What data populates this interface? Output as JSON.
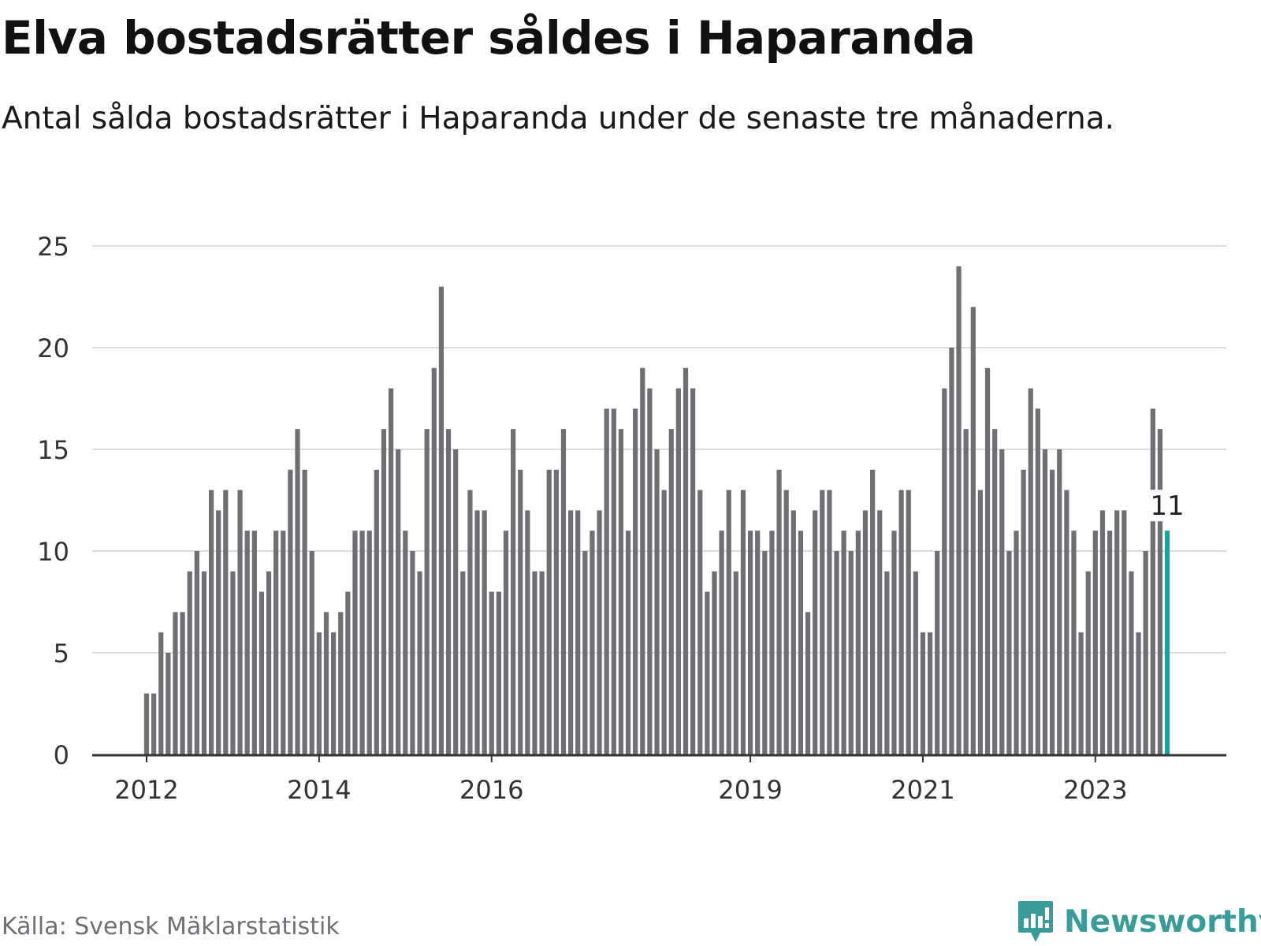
{
  "title": "Elva bostadsrätter såldes i Haparanda",
  "subtitle": "Antal sålda bostadsrätter i Haparanda under de senaste tre månaderna.",
  "source": "Källa: Svensk Mäklarstatistik",
  "brand": {
    "name": "Newsworthy",
    "icon": "newsworthy-logo-icon",
    "color": "#3a9c98"
  },
  "colors": {
    "bar": "#6e6e73",
    "highlight": "#16a39b",
    "grid": "#dddddd",
    "axis": "#333333"
  },
  "chart_data": {
    "type": "bar",
    "title": "Elva bostadsrätter såldes i Haparanda",
    "xlabel": "",
    "ylabel": "",
    "ylim": [
      0,
      25
    ],
    "yticks": [
      0,
      5,
      10,
      15,
      20,
      25
    ],
    "grid": true,
    "legend": "none",
    "start": "2012-01",
    "xtick_labels": [
      {
        "label": "2012",
        "index": 0
      },
      {
        "label": "2014",
        "index": 24
      },
      {
        "label": "2016",
        "index": 48
      },
      {
        "label": "2019",
        "index": 84
      },
      {
        "label": "2021",
        "index": 108
      },
      {
        "label": "2023",
        "index": 132
      }
    ],
    "values": [
      3,
      3,
      6,
      5,
      7,
      7,
      9,
      10,
      9,
      13,
      12,
      13,
      9,
      13,
      11,
      11,
      8,
      9,
      11,
      11,
      14,
      16,
      14,
      10,
      6,
      7,
      6,
      7,
      8,
      11,
      11,
      11,
      14,
      16,
      18,
      15,
      11,
      10,
      9,
      16,
      19,
      23,
      16,
      15,
      9,
      13,
      12,
      12,
      8,
      8,
      11,
      16,
      14,
      12,
      9,
      9,
      14,
      14,
      16,
      12,
      12,
      10,
      11,
      12,
      17,
      17,
      16,
      11,
      17,
      19,
      18,
      15,
      13,
      16,
      18,
      19,
      18,
      13,
      8,
      9,
      11,
      13,
      9,
      13,
      11,
      11,
      10,
      11,
      14,
      13,
      12,
      11,
      7,
      12,
      13,
      13,
      10,
      11,
      10,
      11,
      12,
      14,
      12,
      9,
      11,
      13,
      13,
      9,
      6,
      6,
      10,
      18,
      20,
      24,
      16,
      22,
      13,
      19,
      16,
      15,
      10,
      11,
      14,
      18,
      17,
      15,
      14,
      15,
      13,
      11,
      6,
      9,
      11,
      12,
      11,
      12,
      12,
      9,
      6,
      10,
      17,
      16,
      11
    ],
    "highlight_index": 142,
    "annotation": {
      "index": 142,
      "label": "11"
    }
  }
}
